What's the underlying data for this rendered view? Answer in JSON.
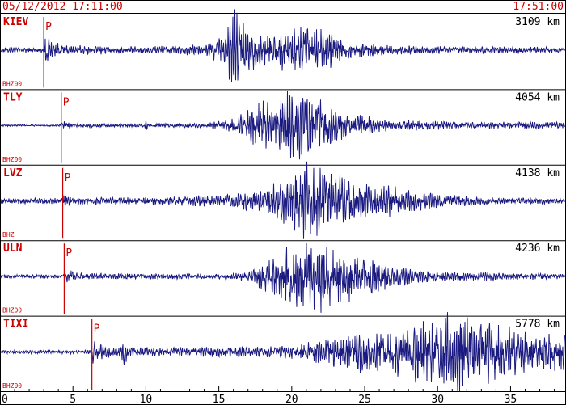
{
  "header": {
    "start_time": "05/12/2012 17:11:00",
    "end_time": "17:51:00"
  },
  "colors": {
    "trace": "#1a1a80",
    "accent": "#cc0000",
    "frame": "#000000"
  },
  "chart_data": {
    "type": "line",
    "x_range": [
      0,
      38.8
    ],
    "x_ticks": [
      0,
      5,
      10,
      15,
      20,
      25,
      30,
      35
    ],
    "x_tick_labels": [
      "0",
      "5",
      "10",
      "15",
      "20",
      "25",
      "30",
      "35"
    ],
    "minor_tick_step": 1,
    "grid": false,
    "series": [
      {
        "name": "KIEV",
        "channel": "BHZ00",
        "distance": "3109 km",
        "p_label": "P",
        "p_time": 3.0,
        "noise": 0.05,
        "coda": 0.06,
        "envelope": [
          [
            0,
            0.06
          ],
          [
            3.0,
            0.06
          ],
          [
            3.1,
            0.45
          ],
          [
            3.5,
            0.18
          ],
          [
            5,
            0.1
          ],
          [
            10,
            0.08
          ],
          [
            14,
            0.12
          ],
          [
            15.5,
            0.38
          ],
          [
            16,
            0.95
          ],
          [
            17,
            0.45
          ],
          [
            18.5,
            0.35
          ],
          [
            19.5,
            0.45
          ],
          [
            21,
            0.55
          ],
          [
            22.5,
            0.4
          ],
          [
            24,
            0.18
          ],
          [
            27,
            0.1
          ],
          [
            32,
            0.08
          ],
          [
            38.8,
            0.06
          ]
        ]
      },
      {
        "name": "TLY",
        "channel": "BHZ00",
        "distance": "4054 km",
        "p_label": "P",
        "p_time": 4.2,
        "noise": 0.02,
        "coda": 0.05,
        "envelope": [
          [
            0,
            0.02
          ],
          [
            4.2,
            0.02
          ],
          [
            4.3,
            0.1
          ],
          [
            5,
            0.04
          ],
          [
            9.8,
            0.04
          ],
          [
            10,
            0.1
          ],
          [
            10.5,
            0.04
          ],
          [
            14,
            0.05
          ],
          [
            16,
            0.15
          ],
          [
            17,
            0.35
          ],
          [
            18,
            0.55
          ],
          [
            20,
            0.75
          ],
          [
            21.5,
            0.65
          ],
          [
            22.5,
            0.45
          ],
          [
            24,
            0.25
          ],
          [
            27,
            0.12
          ],
          [
            32,
            0.08
          ],
          [
            38.8,
            0.07
          ]
        ]
      },
      {
        "name": "LVZ",
        "channel": "BHZ",
        "distance": "4138 km",
        "p_label": "P",
        "p_time": 4.3,
        "noise": 0.05,
        "coda": 0.06,
        "envelope": [
          [
            0,
            0.06
          ],
          [
            4.3,
            0.06
          ],
          [
            4.4,
            0.14
          ],
          [
            5,
            0.08
          ],
          [
            10,
            0.08
          ],
          [
            15,
            0.12
          ],
          [
            18,
            0.25
          ],
          [
            19.5,
            0.5
          ],
          [
            21,
            0.85
          ],
          [
            22.5,
            0.65
          ],
          [
            24,
            0.45
          ],
          [
            26,
            0.35
          ],
          [
            28,
            0.28
          ],
          [
            30,
            0.15
          ],
          [
            33,
            0.08
          ],
          [
            38.8,
            0.06
          ]
        ]
      },
      {
        "name": "ULN",
        "channel": "BHZ00",
        "distance": "4236 km",
        "p_label": "P",
        "p_time": 4.4,
        "noise": 0.04,
        "coda": 0.05,
        "envelope": [
          [
            0,
            0.04
          ],
          [
            4.4,
            0.04
          ],
          [
            4.5,
            0.18
          ],
          [
            5.5,
            0.08
          ],
          [
            10,
            0.06
          ],
          [
            15,
            0.06
          ],
          [
            17,
            0.1
          ],
          [
            18,
            0.3
          ],
          [
            19.5,
            0.6
          ],
          [
            21.5,
            0.85
          ],
          [
            23,
            0.7
          ],
          [
            25,
            0.5
          ],
          [
            27,
            0.2
          ],
          [
            30,
            0.12
          ],
          [
            34,
            0.08
          ],
          [
            38.8,
            0.06
          ]
        ]
      },
      {
        "name": "TIXI",
        "channel": "BHZ00",
        "distance": "5778 km",
        "p_label": "P",
        "p_time": 6.3,
        "noise": 0.04,
        "coda": 0.05,
        "envelope": [
          [
            0,
            0.04
          ],
          [
            6.3,
            0.04
          ],
          [
            6.4,
            0.35
          ],
          [
            7,
            0.15
          ],
          [
            8.2,
            0.12
          ],
          [
            8.5,
            0.3
          ],
          [
            9,
            0.1
          ],
          [
            12,
            0.1
          ],
          [
            17,
            0.12
          ],
          [
            20,
            0.15
          ],
          [
            22,
            0.25
          ],
          [
            24,
            0.4
          ],
          [
            26,
            0.5
          ],
          [
            28,
            0.55
          ],
          [
            29.5,
            0.8
          ],
          [
            31,
            0.9
          ],
          [
            33,
            0.75
          ],
          [
            35,
            0.6
          ],
          [
            37,
            0.45
          ],
          [
            38.8,
            0.4
          ]
        ]
      }
    ]
  }
}
